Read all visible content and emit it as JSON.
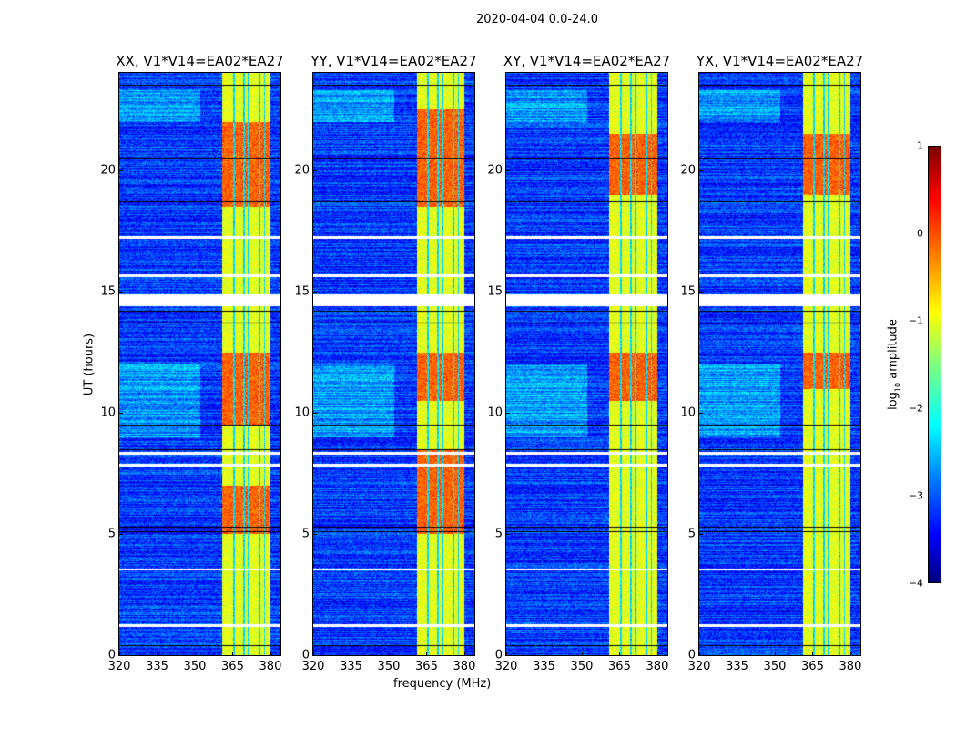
{
  "figure": {
    "suptitle": "2020-04-04 0.0-24.0"
  },
  "chart_data": {
    "type": "heatmap",
    "title": "2020-04-04 0.0-24.0",
    "xlabel": "frequency (MHz)",
    "ylabel": "UT (hours)",
    "xlim": [
      320,
      384
    ],
    "ylim": [
      0,
      24
    ],
    "xticks": [
      320,
      335,
      350,
      365,
      380
    ],
    "yticks": [
      0,
      5,
      10,
      15,
      20
    ],
    "panels": [
      {
        "title": "XX, V1*V14=EA02*EA27",
        "hot_ut_ranges": [
          [
            18.5,
            22
          ],
          [
            9.5,
            12.5
          ],
          [
            5,
            7
          ]
        ]
      },
      {
        "title": "YY, V1*V14=EA02*EA27",
        "hot_ut_ranges": [
          [
            18.5,
            22.5
          ],
          [
            10.5,
            12.5
          ],
          [
            5,
            8.5
          ]
        ]
      },
      {
        "title": "XY, V1*V14=EA02*EA27",
        "hot_ut_ranges": [
          [
            19,
            21.5
          ],
          [
            10.5,
            12.5
          ]
        ]
      },
      {
        "title": "YX, V1*V14=EA02*EA27",
        "hot_ut_ranges": [
          [
            19,
            21.5
          ],
          [
            11,
            12.5
          ]
        ]
      }
    ],
    "strong_band_mhz": [
      360.5,
      380
    ],
    "flagged_ut_ranges": [
      [
        14.4,
        14.9
      ],
      [
        17.2,
        17.3
      ],
      [
        15.6,
        15.7
      ],
      [
        8.3,
        8.4
      ],
      [
        7.8,
        7.9
      ],
      [
        1.2,
        1.3
      ],
      [
        3.5,
        3.6
      ]
    ],
    "colorbar": {
      "label": "log10 amplitude",
      "label_base": "log",
      "label_sub": "10",
      "label_rest": " amplitude",
      "range": [
        -4,
        1
      ],
      "ticks": [
        "1",
        "0",
        "−1",
        "−2",
        "−3",
        "−4"
      ],
      "colormap": "jet"
    }
  }
}
